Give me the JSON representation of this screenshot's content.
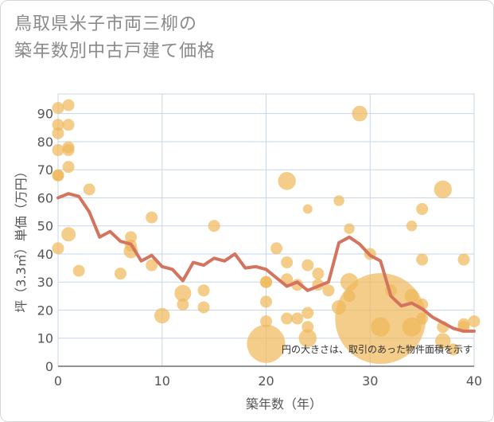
{
  "chart_data": {
    "type": "scatter",
    "title_line1": "鳥取県米子市両三柳の",
    "title_line2": "築年数別中古戸建て価格",
    "xlabel": "築年数（年）",
    "ylabel": "坪（3.3㎡）単価（万円）",
    "xlim": [
      0,
      40
    ],
    "ylim": [
      0,
      97
    ],
    "xticks": [
      0,
      10,
      20,
      30,
      40
    ],
    "yticks": [
      0,
      10,
      20,
      30,
      40,
      50,
      60,
      70,
      80,
      90
    ],
    "note": "円の大きさは、取引のあった物件面積を示す",
    "colors": {
      "bubble": "#f0b85a",
      "line": "#d4735e",
      "grid": "#c8d6e6"
    },
    "scatter_points": [
      {
        "x": 0,
        "y": 92,
        "s": 1
      },
      {
        "x": 0,
        "y": 86,
        "s": 1
      },
      {
        "x": 0,
        "y": 83,
        "s": 1
      },
      {
        "x": 0,
        "y": 77,
        "s": 1
      },
      {
        "x": 0,
        "y": 68,
        "s": 1
      },
      {
        "x": 0,
        "y": 68,
        "s": 1
      },
      {
        "x": 0,
        "y": 42,
        "s": 1
      },
      {
        "x": 1,
        "y": 93,
        "s": 1
      },
      {
        "x": 1,
        "y": 86,
        "s": 1
      },
      {
        "x": 1,
        "y": 78,
        "s": 1
      },
      {
        "x": 1,
        "y": 77,
        "s": 1
      },
      {
        "x": 1,
        "y": 71,
        "s": 1
      },
      {
        "x": 1,
        "y": 47,
        "s": 1.2
      },
      {
        "x": 2,
        "y": 34,
        "s": 1
      },
      {
        "x": 3,
        "y": 63,
        "s": 1
      },
      {
        "x": 6,
        "y": 33,
        "s": 1
      },
      {
        "x": 7,
        "y": 46,
        "s": 1
      },
      {
        "x": 7,
        "y": 43,
        "s": 1
      },
      {
        "x": 7,
        "y": 41,
        "s": 1.2
      },
      {
        "x": 9,
        "y": 53,
        "s": 1
      },
      {
        "x": 9,
        "y": 36,
        "s": 1
      },
      {
        "x": 10,
        "y": 18,
        "s": 1.3
      },
      {
        "x": 12,
        "y": 26,
        "s": 1.4
      },
      {
        "x": 12,
        "y": 22,
        "s": 1
      },
      {
        "x": 14,
        "y": 27,
        "s": 1
      },
      {
        "x": 14,
        "y": 21,
        "s": 1
      },
      {
        "x": 15,
        "y": 50,
        "s": 1
      },
      {
        "x": 20,
        "y": 30,
        "s": 1
      },
      {
        "x": 20,
        "y": 30,
        "s": 1
      },
      {
        "x": 20,
        "y": 23,
        "s": 1
      },
      {
        "x": 20,
        "y": 16,
        "s": 1
      },
      {
        "x": 20,
        "y": 8,
        "s": 3.2
      },
      {
        "x": 21,
        "y": 42,
        "s": 1
      },
      {
        "x": 22,
        "y": 66,
        "s": 1.5
      },
      {
        "x": 22,
        "y": 37,
        "s": 1
      },
      {
        "x": 22,
        "y": 31,
        "s": 1
      },
      {
        "x": 22,
        "y": 17,
        "s": 1
      },
      {
        "x": 23,
        "y": 29,
        "s": 1
      },
      {
        "x": 23,
        "y": 17,
        "s": 1
      },
      {
        "x": 24,
        "y": 56,
        "s": 0.8
      },
      {
        "x": 24,
        "y": 36,
        "s": 1
      },
      {
        "x": 24,
        "y": 19,
        "s": 1
      },
      {
        "x": 24,
        "y": 14,
        "s": 1
      },
      {
        "x": 24,
        "y": 10,
        "s": 1.5
      },
      {
        "x": 25,
        "y": 33,
        "s": 1
      },
      {
        "x": 25,
        "y": 29,
        "s": 1
      },
      {
        "x": 26,
        "y": 27,
        "s": 1
      },
      {
        "x": 27,
        "y": 59,
        "s": 0.9
      },
      {
        "x": 27,
        "y": 21,
        "s": 1.2
      },
      {
        "x": 28,
        "y": 49,
        "s": 0.9
      },
      {
        "x": 28,
        "y": 30,
        "s": 1.5
      },
      {
        "x": 28,
        "y": 25,
        "s": 1
      },
      {
        "x": 29,
        "y": 90,
        "s": 1.3
      },
      {
        "x": 30,
        "y": 40,
        "s": 1
      },
      {
        "x": 31,
        "y": 17,
        "s": 7.6
      },
      {
        "x": 31,
        "y": 14,
        "s": 1.6
      },
      {
        "x": 32,
        "y": 27,
        "s": 1
      },
      {
        "x": 34,
        "y": 50,
        "s": 0.9
      },
      {
        "x": 34,
        "y": 25,
        "s": 1.2
      },
      {
        "x": 34,
        "y": 14,
        "s": 1.6
      },
      {
        "x": 35,
        "y": 56,
        "s": 1
      },
      {
        "x": 35,
        "y": 38,
        "s": 1
      },
      {
        "x": 35,
        "y": 22,
        "s": 1
      },
      {
        "x": 35,
        "y": 17,
        "s": 1
      },
      {
        "x": 37,
        "y": 63,
        "s": 1.5
      },
      {
        "x": 37,
        "y": 14,
        "s": 1
      },
      {
        "x": 37,
        "y": 9,
        "s": 1.3
      },
      {
        "x": 38,
        "y": 6,
        "s": 1
      },
      {
        "x": 39,
        "y": 38,
        "s": 1
      },
      {
        "x": 39,
        "y": 15,
        "s": 1
      },
      {
        "x": 39,
        "y": 14,
        "s": 1
      },
      {
        "x": 40,
        "y": 16,
        "s": 1
      }
    ],
    "trend_line": {
      "x": [
        0,
        1,
        2,
        3,
        4,
        5,
        6,
        7,
        8,
        9,
        10,
        11,
        12,
        13,
        14,
        15,
        16,
        17,
        18,
        19,
        20,
        21,
        22,
        23,
        24,
        25,
        26,
        27,
        28,
        29,
        30,
        31,
        32,
        33,
        34,
        35,
        36,
        37,
        38,
        39,
        40
      ],
      "y": [
        60,
        61.5,
        60.5,
        55,
        46,
        48,
        44.5,
        43.5,
        37.5,
        39.5,
        35.5,
        34.5,
        30.5,
        37,
        36,
        38.5,
        37.5,
        40,
        35,
        35.5,
        34.5,
        31.5,
        28.5,
        30,
        27,
        28.5,
        30,
        44,
        46,
        43.5,
        39.5,
        37.5,
        25,
        21.5,
        22.5,
        20.5,
        17.5,
        15.5,
        13.5,
        12.5,
        12.5
      ]
    }
  }
}
